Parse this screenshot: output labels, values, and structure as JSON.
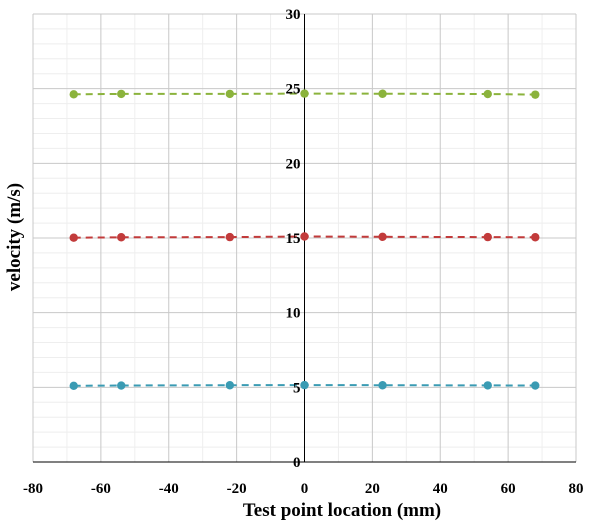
{
  "chart_data": {
    "type": "line",
    "title": "",
    "xlabel": "Test point location (mm)",
    "ylabel": "velocity (m/s)",
    "xlim": [
      -80,
      80
    ],
    "ylim": [
      0,
      30
    ],
    "xticks": [
      -80,
      -60,
      -40,
      -20,
      0,
      20,
      40,
      60,
      80
    ],
    "yticks": [
      0,
      5,
      10,
      15,
      20,
      25,
      30
    ],
    "x_minor_step": 10,
    "y_minor_step": 1,
    "grid": true,
    "legend": "none",
    "series": [
      {
        "color": "#8BB33C",
        "line_style": "dashed",
        "x": [
          -68,
          -54,
          -22,
          0,
          23,
          54,
          68
        ],
        "y": [
          24.62,
          24.65,
          24.65,
          24.67,
          24.66,
          24.64,
          24.6
        ]
      },
      {
        "color": "#C23B3B",
        "line_style": "dashed",
        "x": [
          -68,
          -54,
          -22,
          0,
          23,
          54,
          68
        ],
        "y": [
          15.02,
          15.05,
          15.06,
          15.1,
          15.08,
          15.06,
          15.05
        ]
      },
      {
        "color": "#3A9BB3",
        "line_style": "dashed",
        "x": [
          -68,
          -54,
          -22,
          0,
          23,
          54,
          68
        ],
        "y": [
          5.1,
          5.12,
          5.14,
          5.15,
          5.14,
          5.13,
          5.12
        ]
      }
    ]
  }
}
